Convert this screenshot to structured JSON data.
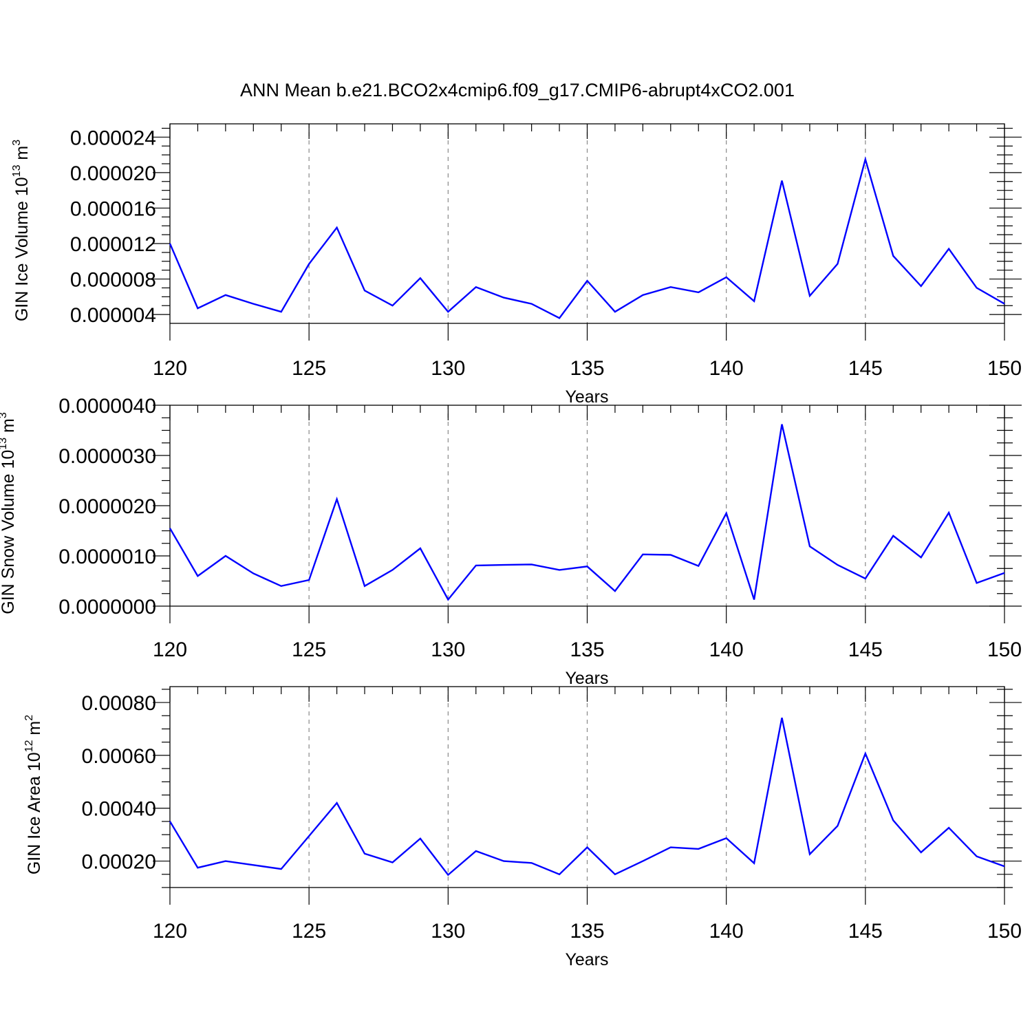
{
  "title": "ANN Mean b.e21.BCO2x4cmip6.f09_g17.CMIP6-abrupt4xCO2.001",
  "colors": {
    "series": "#0000ff",
    "grid": "#888888"
  },
  "chart_data": [
    {
      "type": "line",
      "ylabel_main": "GIN Ice Volume 10",
      "ylabel_exp": "13",
      "ylabel_unit": " m",
      "ylabel_unit_exp": "3",
      "xlabel": "Years",
      "xlim": [
        120,
        150
      ],
      "ylim": [
        3e-06,
        2.55e-05
      ],
      "grid": true,
      "x_ticks": [
        120,
        125,
        130,
        135,
        140,
        145,
        150
      ],
      "x_tick_labels": [
        "120",
        "125",
        "130",
        "135",
        "140",
        "145",
        "150"
      ],
      "y_ticks": [
        4e-06,
        8e-06,
        1.2e-05,
        1.6e-05,
        2e-05,
        2.4e-05
      ],
      "y_tick_labels": [
        "0.000004",
        "0.000008",
        "0.000012",
        "0.000016",
        "0.000020",
        "0.000024"
      ],
      "x": [
        120,
        121,
        122,
        123,
        124,
        125,
        126,
        127,
        128,
        129,
        130,
        131,
        132,
        133,
        134,
        135,
        136,
        137,
        138,
        139,
        140,
        141,
        142,
        143,
        144,
        145,
        146,
        147,
        148,
        149,
        150
      ],
      "values": [
        1.2e-05,
        4.7e-06,
        6.2e-06,
        5.2e-06,
        4.3e-06,
        9.7e-06,
        1.38e-05,
        6.7e-06,
        5e-06,
        8.1e-06,
        4.3e-06,
        7.1e-06,
        5.9e-06,
        5.2e-06,
        3.6e-06,
        7.8e-06,
        4.3e-06,
        6.2e-06,
        7.1e-06,
        6.5e-06,
        8.2e-06,
        5.5e-06,
        1.91e-05,
        6.1e-06,
        9.7e-06,
        2.15e-05,
        1.06e-05,
        7.2e-06,
        1.14e-05,
        7e-06,
        5.2e-06
      ]
    },
    {
      "type": "line",
      "ylabel_main": "GIN Snow Volume 10",
      "ylabel_exp": "13",
      "ylabel_unit": " m",
      "ylabel_unit_exp": "3",
      "xlabel": "Years",
      "xlim": [
        120,
        150
      ],
      "ylim": [
        0.0,
        4e-06
      ],
      "grid": true,
      "x_ticks": [
        120,
        125,
        130,
        135,
        140,
        145,
        150
      ],
      "x_tick_labels": [
        "120",
        "125",
        "130",
        "135",
        "140",
        "145",
        "150"
      ],
      "y_ticks": [
        0.0,
        1e-06,
        2e-06,
        3e-06,
        4e-06
      ],
      "y_tick_labels": [
        "0.0000000",
        "0.0000010",
        "0.0000020",
        "0.0000030",
        "0.0000040"
      ],
      "x": [
        120,
        121,
        122,
        123,
        124,
        125,
        126,
        127,
        128,
        129,
        130,
        131,
        132,
        133,
        134,
        135,
        136,
        137,
        138,
        139,
        140,
        141,
        142,
        143,
        144,
        145,
        146,
        147,
        148,
        149,
        150
      ],
      "values": [
        1.55e-06,
        6e-07,
        1e-06,
        6.5e-07,
        4e-07,
        5.2e-07,
        2.13e-06,
        4e-07,
        7.2e-07,
        1.15e-06,
        1.3e-07,
        8.1e-07,
        8.2e-07,
        8.3e-07,
        7.2e-07,
        7.9e-07,
        3e-07,
        1.03e-06,
        1.02e-06,
        8e-07,
        1.85e-06,
        1.3e-07,
        3.62e-06,
        1.19e-06,
        8.2e-07,
        5.5e-07,
        1.4e-06,
        9.7e-07,
        1.86e-06,
        4.6e-07,
        6.6e-07
      ]
    },
    {
      "type": "line",
      "ylabel_main": "GIN Ice Area 10",
      "ylabel_exp": "12",
      "ylabel_unit": " m",
      "ylabel_unit_exp": "2",
      "xlabel": "Years",
      "xlim": [
        120,
        150
      ],
      "ylim": [
        0.0001,
        0.00086
      ],
      "grid": true,
      "x_ticks": [
        120,
        125,
        130,
        135,
        140,
        145,
        150
      ],
      "x_tick_labels": [
        "120",
        "125",
        "130",
        "135",
        "140",
        "145",
        "150"
      ],
      "y_ticks": [
        0.0002,
        0.0004,
        0.0006,
        0.0008
      ],
      "y_tick_labels": [
        "0.00020",
        "0.00040",
        "0.00060",
        "0.00080"
      ],
      "x": [
        120,
        121,
        122,
        123,
        124,
        125,
        126,
        127,
        128,
        129,
        130,
        131,
        132,
        133,
        134,
        135,
        136,
        137,
        138,
        139,
        140,
        141,
        142,
        143,
        144,
        145,
        146,
        147,
        148,
        149,
        150
      ],
      "values": [
        0.00035,
        0.000175,
        0.0002,
        0.000185,
        0.00017,
        0.000295,
        0.00042,
        0.000228,
        0.000195,
        0.000285,
        0.000148,
        0.000238,
        0.0002,
        0.000193,
        0.00015,
        0.000252,
        0.00015,
        0.0002,
        0.000252,
        0.000246,
        0.000287,
        0.000192,
        0.000742,
        0.000226,
        0.000333,
        0.000607,
        0.000354,
        0.000233,
        0.000326,
        0.000218,
        0.00018
      ]
    }
  ]
}
